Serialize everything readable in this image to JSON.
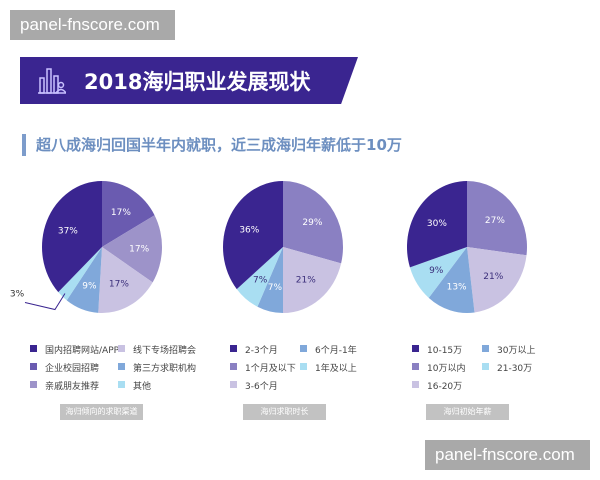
{
  "watermark": "panel-fnscore.com",
  "header": {
    "title": "2018海归职业发展现状",
    "icon": "bar-chart-person-icon"
  },
  "subtitle": "超八成海归回国半年内就职，近三成海归年薪低于10万",
  "chart_data": [
    {
      "type": "pie",
      "title": "海归倾向的求职渠道",
      "unit": "%",
      "slices": [
        {
          "name": "企业校园招聘",
          "value": 17,
          "color": "#6a5bb0"
        },
        {
          "name": "亲戚朋友推荐",
          "value": 17,
          "color": "#9d93c9"
        },
        {
          "name": "线下专场招聘会",
          "value": 17,
          "color": "#c9c2e2"
        },
        {
          "name": "第三方求职机构",
          "value": 9,
          "color": "#80a8da"
        },
        {
          "name": "其他",
          "value": 3,
          "color": "#a9def2"
        },
        {
          "name": "国内招聘网站/APP",
          "value": 37,
          "color": "#3a2590"
        }
      ],
      "legend": [
        "国内招聘网站/APP",
        "线下专场招聘会",
        "企业校园招聘",
        "第三方求职机构",
        "亲戚朋友推荐",
        "其他"
      ]
    },
    {
      "type": "pie",
      "title": "海归求职时长",
      "unit": "%",
      "slices": [
        {
          "name": "1个月及以下",
          "value": 29,
          "color": "#8a80c2"
        },
        {
          "name": "3-6个月",
          "value": 21,
          "color": "#c9c2e2"
        },
        {
          "name": "6个月-1年",
          "value": 7,
          "color": "#80a8da"
        },
        {
          "name": "1年及以上",
          "value": 7,
          "color": "#a9def2"
        },
        {
          "name": "2-3个月",
          "value": 36,
          "color": "#3a2590"
        }
      ],
      "legend": [
        "2-3个月",
        "6个月-1年",
        "1个月及以下",
        "1年及以上",
        "3-6个月"
      ]
    },
    {
      "type": "pie",
      "title": "海归初始年薪",
      "unit": "%",
      "slices": [
        {
          "name": "10万以内",
          "value": 27,
          "color": "#8a80c2"
        },
        {
          "name": "16-20万",
          "value": 21,
          "color": "#c9c2e2"
        },
        {
          "name": "30万以上",
          "value": 13,
          "color": "#80a8da"
        },
        {
          "name": "21-30万",
          "value": 9,
          "color": "#a9def2"
        },
        {
          "name": "10-15万",
          "value": 30,
          "color": "#3a2590"
        }
      ],
      "legend": [
        "10-15万",
        "30万以上",
        "10万以内",
        "21-30万",
        "16-20万"
      ]
    }
  ]
}
